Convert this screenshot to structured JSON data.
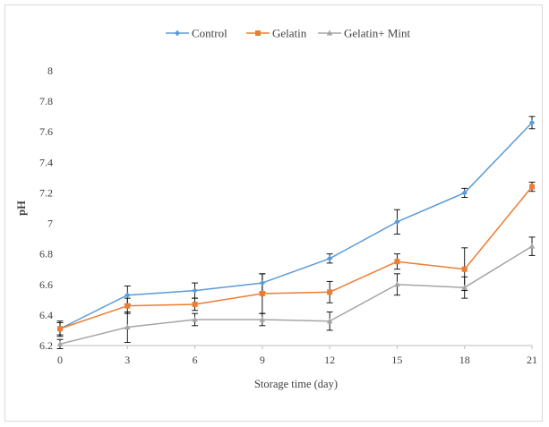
{
  "chart_data": {
    "type": "line",
    "title": "",
    "xlabel": "Storage time (day)",
    "ylabel": "pH",
    "x": [
      0,
      3,
      6,
      9,
      12,
      15,
      18,
      21
    ],
    "xticks": [
      "0",
      "3",
      "6",
      "9",
      "12",
      "15",
      "18",
      "21"
    ],
    "yticks": [
      "6.2",
      "6.4",
      "6.6",
      "6.8",
      "7",
      "7.2",
      "7.4",
      "7.6",
      "7.8",
      "8"
    ],
    "ylim": [
      6.2,
      8
    ],
    "grid": false,
    "legend_position": "top-center",
    "series": [
      {
        "name": "Control",
        "color": "#5b9bd5",
        "marker": "diamond",
        "values": [
          6.31,
          6.53,
          6.56,
          6.61,
          6.77,
          7.01,
          7.2,
          7.66
        ],
        "errors": [
          0.05,
          0.06,
          0.05,
          0.06,
          0.03,
          0.08,
          0.03,
          0.04
        ]
      },
      {
        "name": "Gelatin",
        "color": "#ed7d31",
        "marker": "square",
        "values": [
          6.31,
          6.46,
          6.47,
          6.54,
          6.55,
          6.75,
          6.7,
          7.24
        ],
        "errors": [
          0.04,
          0.05,
          0.04,
          0.13,
          0.07,
          0.05,
          0.14,
          0.03
        ]
      },
      {
        "name": "Gelatin+ Mint",
        "color": "#a5a5a5",
        "marker": "triangle",
        "values": [
          6.21,
          6.32,
          6.37,
          6.37,
          6.36,
          6.6,
          6.58,
          6.85
        ],
        "errors": [
          0.03,
          0.1,
          0.04,
          0.04,
          0.06,
          0.07,
          0.07,
          0.06
        ]
      }
    ]
  }
}
